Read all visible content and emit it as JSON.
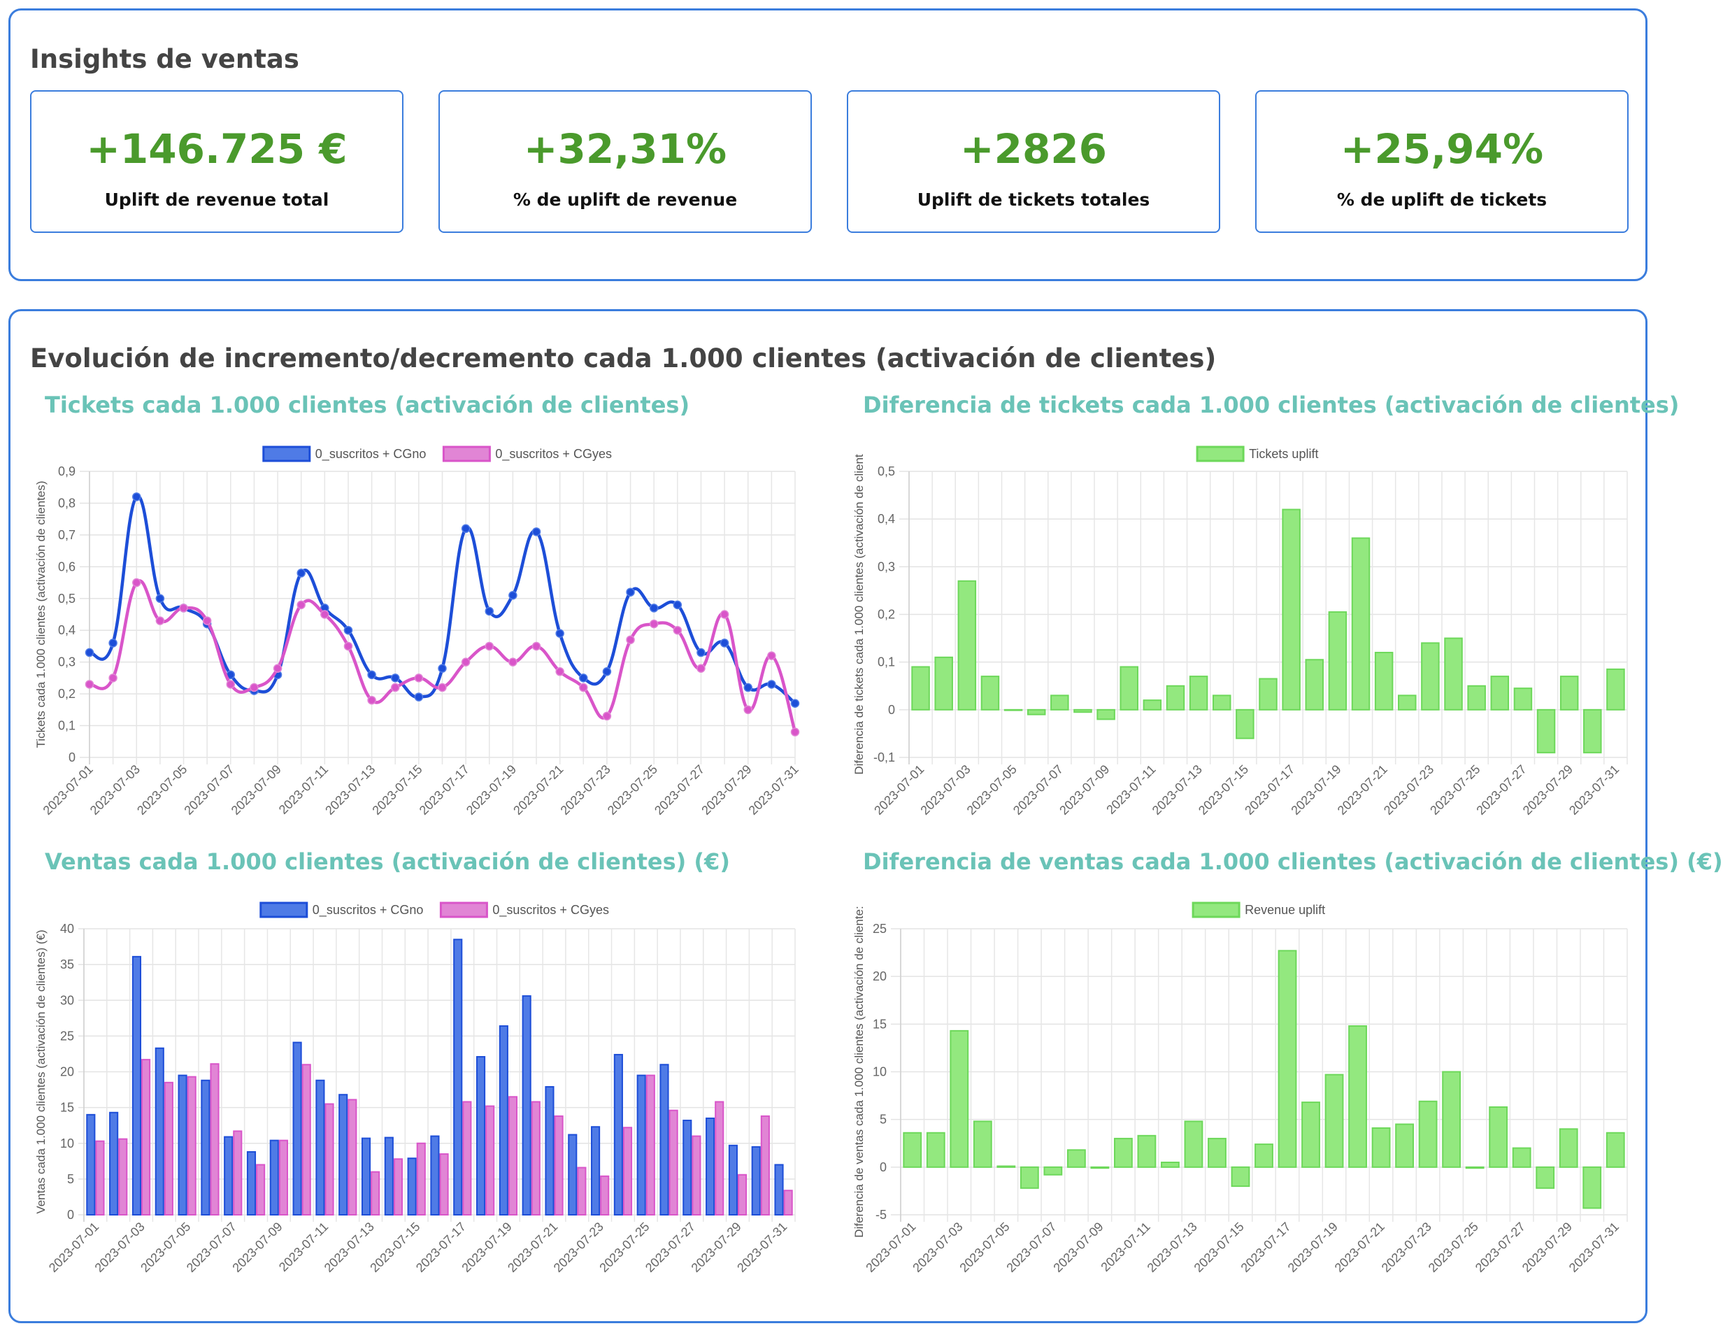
{
  "insights": {
    "title": "Insights de ventas",
    "kpis": [
      {
        "value": "+146.725 €",
        "label": "Uplift de revenue total"
      },
      {
        "value": "+32,31%",
        "label": "% de uplift de revenue"
      },
      {
        "value": "+2826",
        "label": "Uplift de tickets totales"
      },
      {
        "value": "+25,94%",
        "label": "% de uplift de tickets"
      }
    ]
  },
  "evolution": {
    "title": "Evolución de incremento/decremento cada 1.000 clientes (activación de clientes)"
  },
  "colors": {
    "blue": "#1d4ed8",
    "blue_fill": "#4f7be6",
    "pink": "#d955c9",
    "pink_fill": "#e185d5",
    "green": "#6dd85a",
    "green_fill": "#93e87f"
  },
  "chart_data": [
    {
      "type": "line",
      "title": "Tickets cada 1.000 clientes (activación de clientes)",
      "ylabel": "Tickets cada 1.000 clientes (activación de clientes)",
      "xlabel": "",
      "ylim": [
        0,
        0.9
      ],
      "yticks": [
        "0",
        "0,1",
        "0,2",
        "0,3",
        "0,4",
        "0,5",
        "0,6",
        "0,7",
        "0,8",
        "0,9"
      ],
      "x": [
        "2023-07-01",
        "2023-07-02",
        "2023-07-03",
        "2023-07-04",
        "2023-07-05",
        "2023-07-06",
        "2023-07-07",
        "2023-07-08",
        "2023-07-09",
        "2023-07-10",
        "2023-07-11",
        "2023-07-12",
        "2023-07-13",
        "2023-07-14",
        "2023-07-15",
        "2023-07-16",
        "2023-07-17",
        "2023-07-18",
        "2023-07-19",
        "2023-07-20",
        "2023-07-21",
        "2023-07-22",
        "2023-07-23",
        "2023-07-24",
        "2023-07-25",
        "2023-07-26",
        "2023-07-27",
        "2023-07-28",
        "2023-07-29",
        "2023-07-30",
        "2023-07-31"
      ],
      "xticks": [
        "2023-07-01",
        "2023-07-03",
        "2023-07-05",
        "2023-07-07",
        "2023-07-09",
        "2023-07-11",
        "2023-07-13",
        "2023-07-15",
        "2023-07-17",
        "2023-07-19",
        "2023-07-21",
        "2023-07-23",
        "2023-07-25",
        "2023-07-27",
        "2023-07-29",
        "2023-07-31"
      ],
      "legend": "top",
      "grid": true,
      "series": [
        {
          "name": "0_suscritos + CGno",
          "values": [
            0.33,
            0.36,
            0.82,
            0.5,
            0.47,
            0.42,
            0.26,
            0.21,
            0.26,
            0.58,
            0.47,
            0.4,
            0.26,
            0.25,
            0.19,
            0.28,
            0.72,
            0.46,
            0.51,
            0.71,
            0.39,
            0.25,
            0.27,
            0.52,
            0.47,
            0.48,
            0.33,
            0.36,
            0.22,
            0.23,
            0.17
          ]
        },
        {
          "name": "0_suscritos + CGyes",
          "values": [
            0.23,
            0.25,
            0.55,
            0.43,
            0.47,
            0.43,
            0.23,
            0.22,
            0.28,
            0.48,
            0.45,
            0.35,
            0.18,
            0.22,
            0.25,
            0.22,
            0.3,
            0.35,
            0.3,
            0.35,
            0.27,
            0.22,
            0.13,
            0.37,
            0.42,
            0.4,
            0.28,
            0.45,
            0.15,
            0.32,
            0.08
          ]
        }
      ]
    },
    {
      "type": "bar",
      "title": "Diferencia de tickets cada 1.000 clientes (activación de clientes)",
      "ylabel": "Diferencia de tickets cada 1.000 clientes (activación de client",
      "xlabel": "",
      "ylim": [
        -0.1,
        0.5
      ],
      "yticks": [
        "-0,1",
        "0",
        "0,1",
        "0,2",
        "0,3",
        "0,4",
        "0,5"
      ],
      "x": [
        "2023-07-01",
        "2023-07-02",
        "2023-07-03",
        "2023-07-04",
        "2023-07-05",
        "2023-07-06",
        "2023-07-07",
        "2023-07-08",
        "2023-07-09",
        "2023-07-10",
        "2023-07-11",
        "2023-07-12",
        "2023-07-13",
        "2023-07-14",
        "2023-07-15",
        "2023-07-16",
        "2023-07-17",
        "2023-07-18",
        "2023-07-19",
        "2023-07-20",
        "2023-07-21",
        "2023-07-22",
        "2023-07-23",
        "2023-07-24",
        "2023-07-25",
        "2023-07-26",
        "2023-07-27",
        "2023-07-28",
        "2023-07-29",
        "2023-07-30",
        "2023-07-31"
      ],
      "xticks": [
        "2023-07-01",
        "2023-07-03",
        "2023-07-05",
        "2023-07-07",
        "2023-07-09",
        "2023-07-11",
        "2023-07-13",
        "2023-07-15",
        "2023-07-17",
        "2023-07-19",
        "2023-07-21",
        "2023-07-23",
        "2023-07-25",
        "2023-07-27",
        "2023-07-29",
        "2023-07-31"
      ],
      "legend": "top",
      "grid": true,
      "series": [
        {
          "name": "Tickets uplift",
          "values": [
            0.09,
            0.11,
            0.27,
            0.07,
            0.0,
            -0.01,
            0.03,
            -0.005,
            -0.02,
            0.09,
            0.02,
            0.05,
            0.07,
            0.03,
            -0.06,
            0.065,
            0.42,
            0.105,
            0.205,
            0.36,
            0.12,
            0.03,
            0.14,
            0.15,
            0.05,
            0.07,
            0.045,
            -0.09,
            0.07,
            -0.09,
            0.085
          ]
        }
      ]
    },
    {
      "type": "bar",
      "title": "Ventas cada 1.000 clientes (activación de clientes) (€)",
      "ylabel": "Ventas cada 1.000 clientes (activación de clientes) (€)",
      "xlabel": "",
      "ylim": [
        0,
        40
      ],
      "yticks": [
        "0",
        "5",
        "10",
        "15",
        "20",
        "25",
        "30",
        "35",
        "40"
      ],
      "x": [
        "2023-07-01",
        "2023-07-02",
        "2023-07-03",
        "2023-07-04",
        "2023-07-05",
        "2023-07-06",
        "2023-07-07",
        "2023-07-08",
        "2023-07-09",
        "2023-07-10",
        "2023-07-11",
        "2023-07-12",
        "2023-07-13",
        "2023-07-14",
        "2023-07-15",
        "2023-07-16",
        "2023-07-17",
        "2023-07-18",
        "2023-07-19",
        "2023-07-20",
        "2023-07-21",
        "2023-07-22",
        "2023-07-23",
        "2023-07-24",
        "2023-07-25",
        "2023-07-26",
        "2023-07-27",
        "2023-07-28",
        "2023-07-29",
        "2023-07-30",
        "2023-07-31"
      ],
      "xticks": [
        "2023-07-01",
        "2023-07-03",
        "2023-07-05",
        "2023-07-07",
        "2023-07-09",
        "2023-07-11",
        "2023-07-13",
        "2023-07-15",
        "2023-07-17",
        "2023-07-19",
        "2023-07-21",
        "2023-07-23",
        "2023-07-25",
        "2023-07-27",
        "2023-07-29",
        "2023-07-31"
      ],
      "legend": "top",
      "grid": true,
      "series": [
        {
          "name": "0_suscritos + CGno",
          "values": [
            14,
            14.3,
            36.1,
            23.3,
            19.5,
            18.8,
            10.9,
            8.8,
            10.4,
            24.1,
            18.8,
            16.8,
            10.7,
            10.8,
            7.9,
            11,
            38.5,
            22.1,
            26.4,
            30.6,
            17.9,
            11.2,
            12.3,
            22.4,
            19.5,
            21,
            13.2,
            13.5,
            9.7,
            9.5,
            7
          ]
        },
        {
          "name": "0_suscritos + CGyes",
          "values": [
            10.3,
            10.6,
            21.7,
            18.5,
            19.3,
            21.1,
            11.7,
            7,
            10.4,
            21,
            15.5,
            16.1,
            6,
            7.8,
            10,
            8.5,
            15.8,
            15.2,
            16.5,
            15.8,
            13.8,
            6.6,
            5.4,
            12.2,
            19.5,
            14.6,
            11,
            15.8,
            5.6,
            13.8,
            3.4
          ]
        }
      ]
    },
    {
      "type": "bar",
      "title": "Diferencia de ventas cada 1.000 clientes (activación de clientes) (€)",
      "ylabel": "Diferencia de ventas cada 1.000 clientes (activación de cliente:",
      "xlabel": "",
      "ylim": [
        -5,
        25
      ],
      "yticks": [
        "-5",
        "0",
        "5",
        "10",
        "15",
        "20",
        "25"
      ],
      "x": [
        "2023-07-01",
        "2023-07-02",
        "2023-07-03",
        "2023-07-04",
        "2023-07-05",
        "2023-07-06",
        "2023-07-07",
        "2023-07-08",
        "2023-07-09",
        "2023-07-10",
        "2023-07-11",
        "2023-07-12",
        "2023-07-13",
        "2023-07-14",
        "2023-07-15",
        "2023-07-16",
        "2023-07-17",
        "2023-07-18",
        "2023-07-19",
        "2023-07-20",
        "2023-07-21",
        "2023-07-22",
        "2023-07-23",
        "2023-07-24",
        "2023-07-25",
        "2023-07-26",
        "2023-07-27",
        "2023-07-28",
        "2023-07-29",
        "2023-07-30",
        "2023-07-31"
      ],
      "xticks": [
        "2023-07-01",
        "2023-07-03",
        "2023-07-05",
        "2023-07-07",
        "2023-07-09",
        "2023-07-11",
        "2023-07-13",
        "2023-07-15",
        "2023-07-17",
        "2023-07-19",
        "2023-07-21",
        "2023-07-23",
        "2023-07-25",
        "2023-07-27",
        "2023-07-29",
        "2023-07-31"
      ],
      "legend": "top",
      "grid": true,
      "series": [
        {
          "name": "Revenue uplift",
          "values": [
            3.6,
            3.6,
            14.3,
            4.8,
            0.1,
            -2.2,
            -0.8,
            1.8,
            -0.1,
            3,
            3.3,
            0.5,
            4.8,
            3,
            -2,
            2.4,
            22.7,
            6.8,
            9.7,
            14.8,
            4.1,
            4.5,
            6.9,
            10,
            -0.1,
            6.3,
            2,
            -2.2,
            4,
            -4.3,
            3.6
          ]
        }
      ]
    }
  ]
}
